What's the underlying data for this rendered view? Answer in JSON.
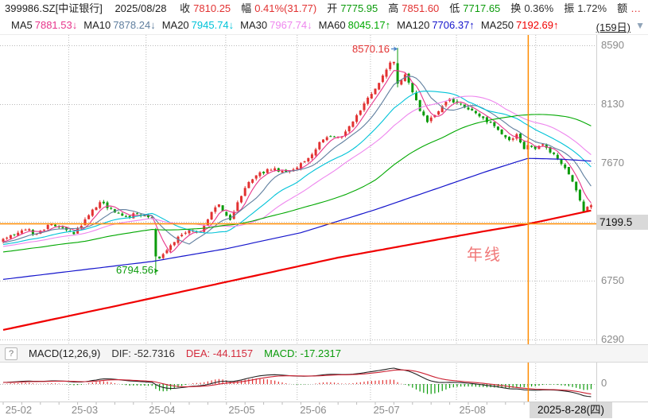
{
  "header": {
    "symbol": "399986.SZ[中证银行]",
    "date": "2025/08/28",
    "fields": [
      {
        "label": "收",
        "value": "7810.25",
        "color": "#e23232"
      },
      {
        "label": "幅",
        "value": "0.41%(31.77)",
        "color": "#e23232"
      },
      {
        "label": "开",
        "value": "7775.95",
        "color": "#0b9b0b"
      },
      {
        "label": "高",
        "value": "7851.60",
        "color": "#e23232"
      },
      {
        "label": "低",
        "value": "7717.65",
        "color": "#0b9b0b"
      },
      {
        "label": "换",
        "value": "0.36%",
        "color": "#333333"
      },
      {
        "label": "振",
        "value": "1.72%",
        "color": "#333333"
      },
      {
        "label": "额",
        "value": "…",
        "color": "#e23232"
      }
    ]
  },
  "ma_bar": {
    "items": [
      {
        "label": "MA5",
        "value": "7881.53",
        "arrow": "↓",
        "color": "#e7358b"
      },
      {
        "label": "MA10",
        "value": "7878.24",
        "arrow": "↓",
        "color": "#607f9f"
      },
      {
        "label": "MA20",
        "value": "7945.74",
        "arrow": "↓",
        "color": "#00c3d8"
      },
      {
        "label": "MA30",
        "value": "7967.74",
        "arrow": "↓",
        "color": "#ee86ee"
      },
      {
        "label": "MA60",
        "value": "8045.17",
        "arrow": "↑",
        "color": "#00a800"
      },
      {
        "label": "MA120",
        "value": "7706.37",
        "arrow": "↑",
        "color": "#1515cc"
      },
      {
        "label": "MA250",
        "value": "7192.69",
        "arrow": "↑",
        "color": "#f00000"
      }
    ],
    "period_selector": "(159日)",
    "dropdown_icon": "▼"
  },
  "macd_bar": {
    "help": "?",
    "title": "MACD(12,26,9)",
    "dif_label": "DIF: -52.7316",
    "dea_label": "DEA: -44.1157",
    "macd_label": "MACD: -17.2317",
    "dif_color": "#333333",
    "dea_color": "#d42b3c",
    "macd_color": "#0b9b0b"
  },
  "chart_data": {
    "type": "candlestick",
    "title": "399986.SZ 中证银行 daily candles with MA5/10/20/30/60/120/250 overlays and MACD(12,26,9)",
    "days_shown": 159,
    "y_axis": {
      "ticks": [
        8590,
        8130,
        7670,
        7210,
        6750,
        6290
      ],
      "shown_labels": [
        "8590",
        "8130",
        "7670",
        "6750",
        "6290"
      ]
    },
    "x_axis": {
      "months": [
        {
          "label": "25-02",
          "day": 0.6,
          "gridline": false
        },
        {
          "label": "25-03",
          "day": 17.5,
          "gridline": true
        },
        {
          "label": "25-04",
          "day": 38.3,
          "gridline": true
        },
        {
          "label": "25-05",
          "day": 59.7,
          "gridline": true
        },
        {
          "label": "25-06",
          "day": 78.9,
          "gridline": true
        },
        {
          "label": "25-07",
          "day": 98.6,
          "gridline": true
        },
        {
          "label": "25-08",
          "day": 121.7,
          "gridline": true
        },
        {
          "label": "",
          "day": 143,
          "gridline": true
        }
      ]
    },
    "close_keyframes": [
      [
        0,
        7070
      ],
      [
        3,
        7115
      ],
      [
        6,
        7160
      ],
      [
        9,
        7105
      ],
      [
        13,
        7200
      ],
      [
        16,
        7150
      ],
      [
        19,
        7120
      ],
      [
        23,
        7260
      ],
      [
        26,
        7370
      ],
      [
        29,
        7300
      ],
      [
        33,
        7245
      ],
      [
        36,
        7280
      ],
      [
        39,
        7255
      ],
      [
        40,
        7248
      ],
      [
        41,
        6940
      ],
      [
        42,
        6925
      ],
      [
        44,
        6990
      ],
      [
        47,
        7085
      ],
      [
        50,
        7145
      ],
      [
        53,
        7125
      ],
      [
        56,
        7290
      ],
      [
        58,
        7340
      ],
      [
        60,
        7255
      ],
      [
        61,
        7215
      ],
      [
        63,
        7355
      ],
      [
        65,
        7480
      ],
      [
        68,
        7575
      ],
      [
        72,
        7625
      ],
      [
        76,
        7595
      ],
      [
        79,
        7635
      ],
      [
        82,
        7705
      ],
      [
        85,
        7825
      ],
      [
        88,
        7885
      ],
      [
        91,
        7865
      ],
      [
        94,
        8005
      ],
      [
        97,
        8135
      ],
      [
        99,
        8205
      ],
      [
        102,
        8345
      ],
      [
        104,
        8445
      ],
      [
        105,
        8465
      ],
      [
        106,
        8290
      ],
      [
        108,
        8370
      ],
      [
        110,
        8225
      ],
      [
        112,
        8085
      ],
      [
        114,
        7985
      ],
      [
        116,
        8045
      ],
      [
        118,
        8125
      ],
      [
        120,
        8165
      ],
      [
        122,
        8135
      ],
      [
        124,
        8110
      ],
      [
        126,
        8085
      ],
      [
        128,
        8025
      ],
      [
        131,
        7985
      ],
      [
        134,
        7905
      ],
      [
        136,
        7845
      ],
      [
        138,
        7895
      ],
      [
        140,
        7778.48
      ],
      [
        141,
        7810.25
      ],
      [
        143,
        7785
      ],
      [
        145,
        7825
      ],
      [
        147,
        7755
      ],
      [
        149,
        7705
      ],
      [
        151,
        7625
      ],
      [
        153,
        7525
      ],
      [
        155,
        7375
      ],
      [
        156,
        7295
      ],
      [
        157,
        7325
      ],
      [
        158,
        7330
      ]
    ],
    "key_points": {
      "period_high": {
        "day": 106,
        "price": 8570.16
      },
      "period_low": {
        "day": 41,
        "price": 6794.56
      },
      "cursor_day": {
        "day": 141,
        "date": "2025-8-28(四)",
        "open": 7775.95,
        "high": 7851.6,
        "low": 7717.65,
        "close": 7810.25
      }
    },
    "ma_overlays": {
      "computed_periods": [
        5,
        10,
        20,
        30,
        60
      ],
      "ma120_keyframes": [
        [
          0,
          6760
        ],
        [
          20,
          6830
        ],
        [
          40,
          6900
        ],
        [
          60,
          7000
        ],
        [
          80,
          7125
        ],
        [
          100,
          7305
        ],
        [
          115,
          7455
        ],
        [
          130,
          7605
        ],
        [
          141,
          7706
        ],
        [
          150,
          7700
        ],
        [
          158,
          7685
        ]
      ],
      "ma250_keyframes": [
        [
          0,
          6365
        ],
        [
          30,
          6550
        ],
        [
          60,
          6740
        ],
        [
          90,
          6930
        ],
        [
          115,
          7062
        ],
        [
          130,
          7140
        ],
        [
          141,
          7193
        ],
        [
          158,
          7298
        ]
      ]
    },
    "macd": {
      "params": [
        12,
        26,
        9
      ],
      "dif": -52.7316,
      "dea": -44.1157,
      "macd": -17.2317
    },
    "crosshair": {
      "day": 141,
      "price": 7199.5,
      "price_label": "7199.5",
      "date_label": "2025-8-28(四)"
    },
    "annotations": {
      "high_label": "8570.16",
      "low_label": "6794.56",
      "year_line": "年线",
      "macd_zero": "0"
    },
    "colors": {
      "up": "#e23232",
      "down": "#0b9b0b",
      "crosshair": "#ff8a00",
      "grid": "#b9b9b9",
      "ma5": "#e7358b",
      "ma10": "#607f9f",
      "ma20": "#00c3d8",
      "ma30": "#ee86ee",
      "ma60": "#00a800",
      "ma120": "#1515cc",
      "ma250": "#f00000",
      "axis_text": "#8a8a8a",
      "label_bg": "#d9d9d9",
      "dif_line": "#222222",
      "dea_line": "#cc2233",
      "arrow_blue": "#4a84c8",
      "year_label": "#f07878",
      "border": "#cfcfcf"
    }
  }
}
